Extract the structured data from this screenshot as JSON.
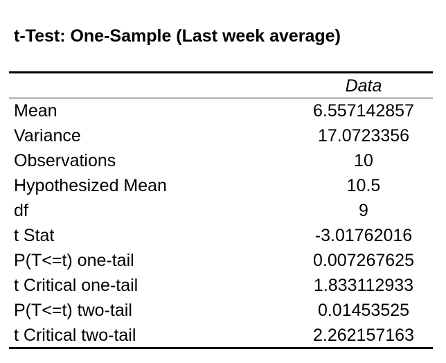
{
  "title": "t-Test: One-Sample (Last week average)",
  "table": {
    "header": {
      "label": "",
      "value": "Data"
    },
    "rows": [
      {
        "label": "Mean",
        "value": "6.557142857"
      },
      {
        "label": "Variance",
        "value": "17.0723356"
      },
      {
        "label": "Observations",
        "value": "10"
      },
      {
        "label": "Hypothesized Mean",
        "value": "10.5"
      },
      {
        "label": "df",
        "value": "9"
      },
      {
        "label": "t Stat",
        "value": "-3.01762016"
      },
      {
        "label": "P(T<=t) one-tail",
        "value": "0.007267625"
      },
      {
        "label": "t Critical one-tail",
        "value": "1.833112933"
      },
      {
        "label": "P(T<=t) two-tail",
        "value": "0.01453525"
      },
      {
        "label": "t Critical two-tail",
        "value": "2.262157163"
      }
    ]
  }
}
